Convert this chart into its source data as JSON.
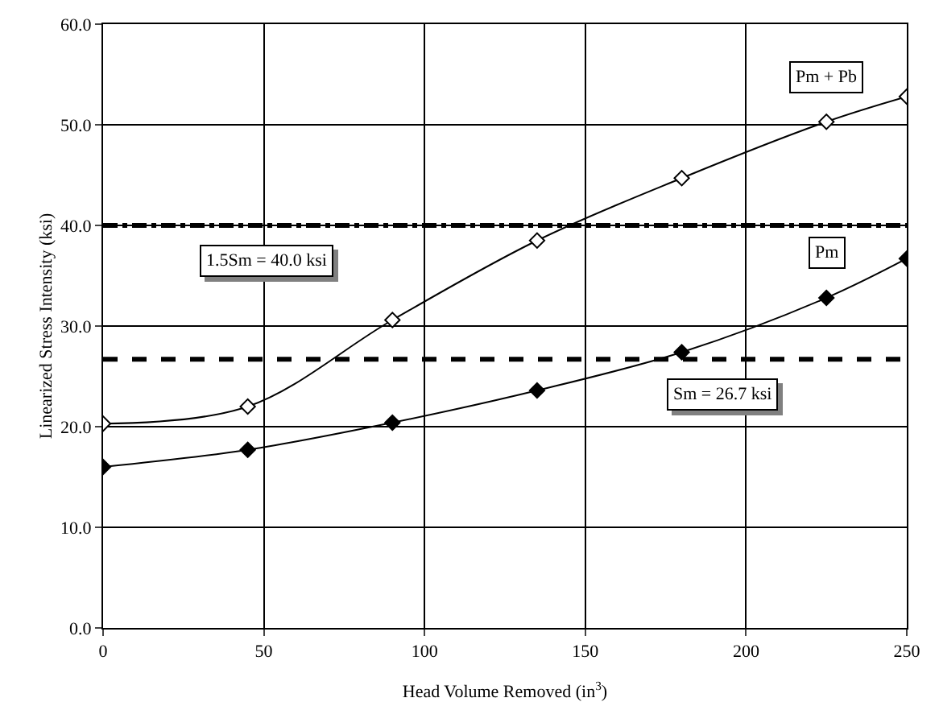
{
  "chart_data": {
    "type": "line",
    "xlabel": "Head Volume Removed (in$^{3}$)",
    "ylabel": "Linearized Stress Intensity (ksi)",
    "x": [
      0,
      45,
      90,
      135,
      180,
      225,
      250
    ],
    "series": [
      {
        "name": "Pm + Pb",
        "color": "#000000",
        "values": [
          20.3,
          22.0,
          30.6,
          38.5,
          44.7,
          50.3,
          52.8
        ]
      },
      {
        "name": "Pm",
        "color": "#000000",
        "values": [
          16.0,
          17.7,
          20.4,
          23.6,
          27.4,
          32.8,
          36.7
        ]
      }
    ],
    "xlim": [
      0,
      250
    ],
    "xticks": [
      0,
      50,
      100,
      150,
      200,
      250
    ],
    "ylim": [
      0,
      60
    ],
    "yticks": [
      {
        "value": 0,
        "label": "0.0"
      },
      {
        "value": 10,
        "label": "10.0"
      },
      {
        "value": 20,
        "label": "20.0"
      },
      {
        "value": 30,
        "label": "30.0"
      },
      {
        "value": 40,
        "label": "40.0"
      },
      {
        "value": 50,
        "label": "50.0"
      },
      {
        "value": 60,
        "label": "60.0"
      }
    ],
    "ref_lines": [
      {
        "axis": "y",
        "value": 40.0,
        "label": "1.5Sm = 40.0 ksi",
        "line_style": "dashdot"
      },
      {
        "axis": "y",
        "value": 26.7,
        "label": "Sm = 26.7 ksi",
        "line_style": "dashed"
      }
    ],
    "grid": true,
    "legend": false,
    "marker": "diamond",
    "line_style": "solid"
  }
}
